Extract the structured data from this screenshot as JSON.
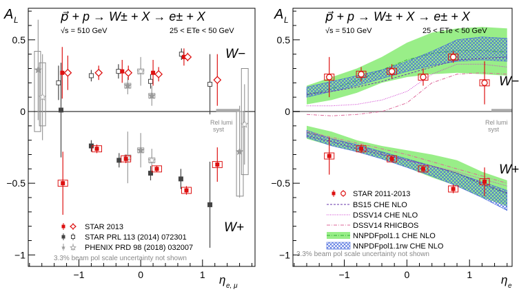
{
  "chart_data": [
    {
      "type": "scatter",
      "y_symbol": "A",
      "y_sub": "L",
      "x_symbol": "η",
      "x_sub": "e, μ",
      "ylim": [
        -1.08,
        0.72
      ],
      "xlim": [
        -1.82,
        1.85
      ],
      "yticks": [
        {
          "v": 0.5,
          "label": "0.5"
        },
        {
          "v": 0,
          "label": "0"
        },
        {
          "v": -0.5,
          "label": "−0.5"
        },
        {
          "v": -1,
          "label": "−1"
        }
      ],
      "xticks": [
        {
          "v": -1,
          "label": "−1"
        },
        {
          "v": 0,
          "label": "0"
        },
        {
          "v": 1,
          "label": "1"
        }
      ],
      "reaction": "p⃗ + p → W± + X → e± + X",
      "sqrt_s": "√s = 510 GeV",
      "et_cut": "25 < ETe < 50 GeV",
      "label_wminus": "W−",
      "label_wplus": "W+",
      "rel_lumi_1": "Rel lumi",
      "rel_lumi_2": "syst",
      "note": "3.3% beam pol scale uncertainty not shown",
      "legend": [
        {
          "label": "STAR 2013",
          "style": "star2013"
        },
        {
          "label": "STAR PRL 113 (2014) 072301",
          "style": "star2014"
        },
        {
          "label": "PHENIX PRD 98 (2018) 032007",
          "style": "phenix"
        }
      ],
      "series": [
        {
          "name": "STAR 2013",
          "wminus_filled": [
            {
              "x": -1.27,
              "y": 0.27,
              "err": 0.18
            },
            {
              "x": -0.3,
              "y": 0.28,
              "err": 0.08
            },
            {
              "x": 0.2,
              "y": 0.27,
              "err": 0.09
            },
            {
              "x": 0.7,
              "y": 0.38,
              "err": 0.06
            }
          ],
          "wminus_open": [
            {
              "x": -1.18,
              "y": 0.27,
              "err": 0.12
            },
            {
              "x": -0.68,
              "y": 0.27,
              "err": 0.05
            },
            {
              "x": -0.2,
              "y": 0.27,
              "err": 0.05
            },
            {
              "x": 0.29,
              "y": 0.26,
              "err": 0.05
            },
            {
              "x": 0.76,
              "y": 0.38,
              "err": 0.03
            },
            {
              "x": 1.24,
              "y": 0.22,
              "err": 0.18
            }
          ],
          "wplus": [
            {
              "x": -1.26,
              "y": -0.5,
              "err": 0.22
            },
            {
              "x": -0.71,
              "y": -0.26,
              "err": 0.03
            },
            {
              "x": -0.24,
              "y": -0.33,
              "err": 0.03
            },
            {
              "x": 0.26,
              "y": -0.4,
              "err": 0.02
            },
            {
              "x": 0.74,
              "y": -0.55,
              "err": 0.03
            },
            {
              "x": 1.24,
              "y": -0.37,
              "err": 0.12
            }
          ]
        },
        {
          "name": "STAR PRL 113 (2014) 072301",
          "wminus": [
            {
              "x": -1.33,
              "y": 0.2,
              "err": 0.12
            },
            {
              "x": -0.8,
              "y": 0.25,
              "err": 0.04
            },
            {
              "x": -0.36,
              "y": 0.28,
              "err": 0.05
            },
            {
              "x": 0.16,
              "y": 0.21,
              "err": 0.05
            },
            {
              "x": 0.66,
              "y": 0.4,
              "err": 0.04
            },
            {
              "x": 1.12,
              "y": 0.19,
              "err": 0.21
            }
          ],
          "wplus": [
            {
              "x": -1.29,
              "y": 0.01,
              "err": 0.33
            },
            {
              "x": -0.8,
              "y": -0.24,
              "err": 0.04
            },
            {
              "x": -0.35,
              "y": -0.34,
              "err": 0.05
            },
            {
              "x": 0.16,
              "y": -0.43,
              "err": 0.05
            },
            {
              "x": 0.65,
              "y": -0.47,
              "err": 0.07
            },
            {
              "x": 1.12,
              "y": -0.65,
              "err": 0.3
            }
          ]
        },
        {
          "name": "PHENIX PRD 98 (2018) 032007",
          "points": [
            {
              "x": -1.66,
              "y": 0.29,
              "err": 0.35
            },
            {
              "x": -1.59,
              "y": 0.1,
              "err": 0.3
            },
            {
              "x": -0.21,
              "y": 0.18,
              "err": 0.06
            },
            {
              "x": 0.0,
              "y": 0.28,
              "err": 0.1
            },
            {
              "x": 0.18,
              "y": 0.11,
              "err": 0.07
            },
            {
              "x": -0.21,
              "y": -0.32,
              "err": 0.18
            },
            {
              "x": 0.0,
              "y": -0.27,
              "err": 0.12
            },
            {
              "x": 0.18,
              "y": -0.34,
              "err": 0.08
            },
            {
              "x": 1.6,
              "y": -0.28,
              "err": 0.32
            },
            {
              "x": 1.68,
              "y": -0.09,
              "err": 0.28
            }
          ]
        }
      ]
    },
    {
      "type": "scatter",
      "y_symbol": "A",
      "y_sub": "L",
      "x_symbol": "η",
      "x_sub": "e",
      "ylim": [
        -1.08,
        0.72
      ],
      "xlim": [
        -1.82,
        1.68
      ],
      "yticks": [
        {
          "v": 0.5,
          "label": "0.5"
        },
        {
          "v": 0,
          "label": "0"
        },
        {
          "v": -0.5,
          "label": "−0.5"
        },
        {
          "v": -1,
          "label": "−1"
        }
      ],
      "xticks": [
        {
          "v": -1,
          "label": "−1"
        },
        {
          "v": 0,
          "label": "0"
        },
        {
          "v": 1,
          "label": "1"
        }
      ],
      "reaction": "p⃗ + p → W± + X → e± + X",
      "sqrt_s": "√s = 510 GeV",
      "et_cut": "25 < ETe < 50 GeV",
      "label_wminus": "W−",
      "label_wplus": "W+",
      "rel_lumi_1": "Rel lumi",
      "rel_lumi_2": "syst",
      "note": "3.3% beam pol scale uncertainty not shown",
      "legend": [
        {
          "label": "STAR 2011-2013",
          "style": "star2013"
        },
        {
          "label": "BS15 CHE NLO",
          "style": "bs15"
        },
        {
          "label": "DSSV14 CHE NLO",
          "style": "dssv"
        },
        {
          "label": "DSSV14 RHICBOS",
          "style": "rhicbos"
        },
        {
          "label": "NNPDFpol1.1 CHE NLO",
          "style": "nnpdf"
        },
        {
          "label": "NNPDFpol1.1rw CHE NLO",
          "style": "nnpdfrw"
        }
      ],
      "series": [
        {
          "name": "STAR 2011-2013",
          "wminus": [
            {
              "x": -1.24,
              "y": 0.24,
              "err": 0.14
            },
            {
              "x": -0.73,
              "y": 0.26,
              "err": 0.05
            },
            {
              "x": -0.24,
              "y": 0.28,
              "err": 0.05
            },
            {
              "x": 0.26,
              "y": 0.24,
              "err": 0.06
            },
            {
              "x": 0.74,
              "y": 0.38,
              "err": 0.04
            },
            {
              "x": 1.24,
              "y": 0.2,
              "err": 0.15
            }
          ],
          "wplus": [
            {
              "x": -1.24,
              "y": -0.31,
              "err": 0.13
            },
            {
              "x": -0.73,
              "y": -0.26,
              "err": 0.03
            },
            {
              "x": -0.24,
              "y": -0.33,
              "err": 0.02
            },
            {
              "x": 0.26,
              "y": -0.4,
              "err": 0.02
            },
            {
              "x": 0.74,
              "y": -0.54,
              "err": 0.03
            },
            {
              "x": 1.24,
              "y": -0.49,
              "err": 0.1
            }
          ]
        }
      ],
      "bands": {
        "x": [
          -1.6,
          -1.2,
          -0.8,
          -0.4,
          0.0,
          0.4,
          0.8,
          1.2,
          1.6
        ],
        "nnpdf_minus_lo": [
          0.05,
          0.08,
          0.13,
          0.2,
          0.24,
          0.26,
          0.27,
          0.26,
          0.25
        ],
        "nnpdf_minus_hi": [
          0.18,
          0.24,
          0.3,
          0.38,
          0.48,
          0.55,
          0.58,
          0.59,
          0.58
        ],
        "nnpdfrw_minus_lo": [
          0.1,
          0.14,
          0.18,
          0.23,
          0.28,
          0.32,
          0.35,
          0.36,
          0.35
        ],
        "nnpdfrw_minus_hi": [
          0.17,
          0.21,
          0.25,
          0.29,
          0.35,
          0.42,
          0.5,
          0.52,
          0.51
        ],
        "nnpdf_plus_lo": [
          -0.19,
          -0.24,
          -0.28,
          -0.33,
          -0.39,
          -0.46,
          -0.52,
          -0.6,
          -0.66
        ],
        "nnpdf_plus_hi": [
          -0.1,
          -0.14,
          -0.2,
          -0.24,
          -0.27,
          -0.3,
          -0.34,
          -0.42,
          -0.48
        ],
        "nnpdfrw_plus_lo": [
          -0.18,
          -0.24,
          -0.28,
          -0.33,
          -0.39,
          -0.45,
          -0.52,
          -0.6,
          -0.69
        ],
        "nnpdfrw_plus_hi": [
          -0.13,
          -0.19,
          -0.23,
          -0.28,
          -0.33,
          -0.38,
          -0.43,
          -0.49,
          -0.55
        ],
        "bs15_minus": [
          0.12,
          0.14,
          0.17,
          0.21,
          0.26,
          0.31,
          0.36,
          0.37,
          0.38
        ],
        "dssv_minus": [
          0.04,
          0.04,
          0.05,
          0.08,
          0.14,
          0.26,
          0.33,
          0.33,
          0.31
        ],
        "rhicbos_minus": [
          -0.02,
          -0.03,
          -0.02,
          0.0,
          0.06,
          0.2,
          0.26,
          0.27,
          0.26
        ],
        "bs15_plus": [
          -0.17,
          -0.21,
          -0.26,
          -0.3,
          -0.34,
          -0.38,
          -0.43,
          -0.5,
          -0.57
        ],
        "dssv_plus": [
          -0.15,
          -0.19,
          -0.24,
          -0.29,
          -0.34,
          -0.38,
          -0.42,
          -0.47,
          -0.52
        ],
        "rhicbos_plus": [
          -0.14,
          -0.18,
          -0.22,
          -0.26,
          -0.3,
          -0.35,
          -0.4,
          -0.45,
          -0.5
        ]
      }
    }
  ],
  "colors": {
    "star2013": "#dd1111",
    "star2014": "#444444",
    "phenix": "#9a9a9a",
    "zero_line_left": "#000000",
    "zero_line_right": "#999999",
    "nnpdf_band": "#99ee88",
    "nnpdf_line": "#44bb44",
    "nnpdfrw_hatch": "#4466dd",
    "bs15": "#6633aa",
    "dssv": "#cc33cc",
    "rhicbos": "#dd6699",
    "note": "#888888"
  }
}
